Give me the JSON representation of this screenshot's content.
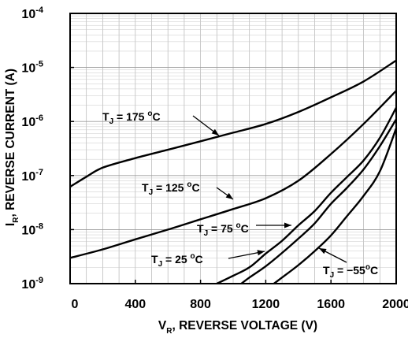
{
  "chart_data": {
    "type": "line",
    "title": "",
    "xlabel": "V",
    "xlabel_sub": "R",
    "xlabel_rest": ", REVERSE VOLTAGE (V)",
    "ylabel": "I",
    "ylabel_sub": "R",
    "ylabel_rest": ", REVERSE CURRENT (A)",
    "xlim": [
      0,
      2000
    ],
    "ylim": [
      1e-09,
      0.0001
    ],
    "y_scale": "log",
    "grid": true,
    "x_ticks": [
      "0",
      "400",
      "800",
      "1200",
      "1600",
      "2000"
    ],
    "x_tick_values": [
      0,
      400,
      800,
      1200,
      1600,
      2000
    ],
    "y_ticks": [
      {
        "base": "10",
        "exp": "-9",
        "value": 1e-09
      },
      {
        "base": "10",
        "exp": "-8",
        "value": 1e-08
      },
      {
        "base": "10",
        "exp": "-7",
        "value": 1e-07
      },
      {
        "base": "10",
        "exp": "-6",
        "value": 1e-06
      },
      {
        "base": "10",
        "exp": "-5",
        "value": 1e-05
      },
      {
        "base": "10",
        "exp": "-4",
        "value": 0.0001
      }
    ],
    "series": [
      {
        "label_main": "T",
        "label_sub": "J",
        "label_value": " = 175 ",
        "label_deg": "o",
        "label_unit": "C",
        "x": [
          0,
          100,
          200,
          400,
          600,
          800,
          1000,
          1200,
          1400,
          1600,
          1800,
          2000
        ],
        "y": [
          6.2e-08,
          9.5e-08,
          1.4e-07,
          2.1e-07,
          3e-07,
          4.3e-07,
          6.2e-07,
          9e-07,
          1.5e-06,
          2.8e-06,
          5.5e-06,
          1.35e-05
        ]
      },
      {
        "label_main": "T",
        "label_sub": "J",
        "label_value": " = 125 ",
        "label_deg": "o",
        "label_unit": "C",
        "x": [
          0,
          200,
          400,
          600,
          800,
          1000,
          1200,
          1400,
          1600,
          1800,
          2000
        ],
        "y": [
          3e-09,
          4.3e-09,
          6.6e-09,
          1e-08,
          1.55e-08,
          2.4e-08,
          3.8e-08,
          8e-08,
          2.5e-07,
          9e-07,
          3.7e-06
        ]
      },
      {
        "label_main": "T",
        "label_sub": "J",
        "label_value": " = 75 ",
        "label_deg": "o",
        "label_unit": "C",
        "x": [
          900,
          1000,
          1100,
          1200,
          1300,
          1400,
          1500,
          1600,
          1700,
          1800,
          1900,
          2000
        ],
        "y": [
          1e-09,
          1.4e-09,
          2e-09,
          3.6e-09,
          6.2e-09,
          1.2e-08,
          2.2e-08,
          4.8e-08,
          9.5e-08,
          1.9e-07,
          5e-07,
          1.8e-06
        ]
      },
      {
        "label_main": "T",
        "label_sub": "J",
        "label_value": " = 25 ",
        "label_deg": "o",
        "label_unit": "C",
        "x": [
          1050,
          1100,
          1200,
          1300,
          1400,
          1500,
          1600,
          1700,
          1800,
          1900,
          2000
        ],
        "y": [
          1e-09,
          1.3e-09,
          2.1e-09,
          3.7e-09,
          6.8e-09,
          1.3e-08,
          3e-08,
          6e-08,
          1.3e-07,
          3.5e-07,
          1.1e-06
        ]
      },
      {
        "label_main": "T",
        "label_sub": "J",
        "label_value": " = −55",
        "label_deg": "o",
        "label_unit": "C",
        "x": [
          1250,
          1300,
          1400,
          1500,
          1600,
          1700,
          1800,
          1900,
          2000
        ],
        "y": [
          1e-09,
          1.3e-09,
          2.2e-09,
          4e-09,
          7.8e-09,
          1.8e-08,
          4.2e-08,
          1.2e-07,
          7.5e-07
        ]
      }
    ],
    "annotations": [
      {
        "series": 0,
        "text_x": 130,
        "text_y": 153,
        "arrow_from": [
          245,
          147
        ],
        "arrow_to": [
          278,
          172
        ],
        "anchor": "start"
      },
      {
        "series": 1,
        "text_x": 180,
        "text_y": 243,
        "arrow_from": [
          275,
          238
        ],
        "arrow_to": [
          296,
          253
        ],
        "anchor": "start"
      },
      {
        "series": 2,
        "text_x": 250,
        "text_y": 295,
        "arrow_from": [
          325,
          286
        ],
        "arrow_to": [
          370,
          286
        ],
        "anchor": "start"
      },
      {
        "series": 3,
        "text_x": 192,
        "text_y": 334,
        "arrow_from": [
          290,
          328
        ],
        "arrow_to": [
          336,
          319
        ],
        "anchor": "start"
      },
      {
        "series": 4,
        "text_x": 410,
        "text_y": 348,
        "arrow_from": [
          440,
          333
        ],
        "arrow_to": [
          405,
          315
        ],
        "anchor": "start"
      }
    ]
  }
}
